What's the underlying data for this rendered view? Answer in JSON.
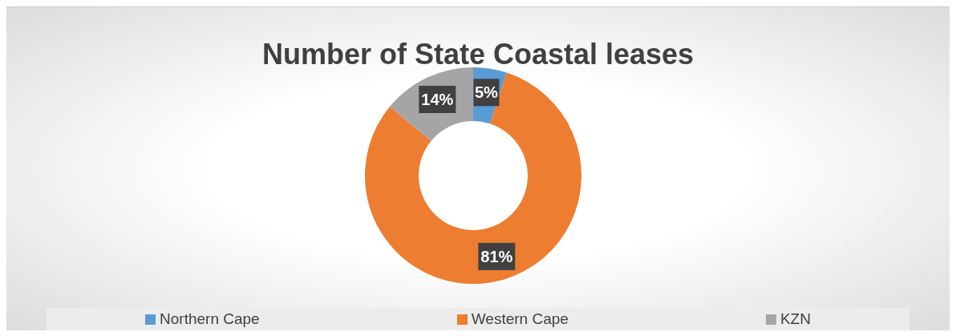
{
  "chart_data": {
    "type": "donut",
    "title": "Number of State Coastal leases",
    "categories": [
      "Northern Cape",
      "Western Cape",
      "KZN"
    ],
    "values": [
      5,
      81,
      14
    ],
    "colors": [
      "#5b9bd5",
      "#ed7d31",
      "#a5a5a5"
    ],
    "value_labels": [
      "5%",
      "81%",
      "14%"
    ],
    "legend": "bottom"
  }
}
